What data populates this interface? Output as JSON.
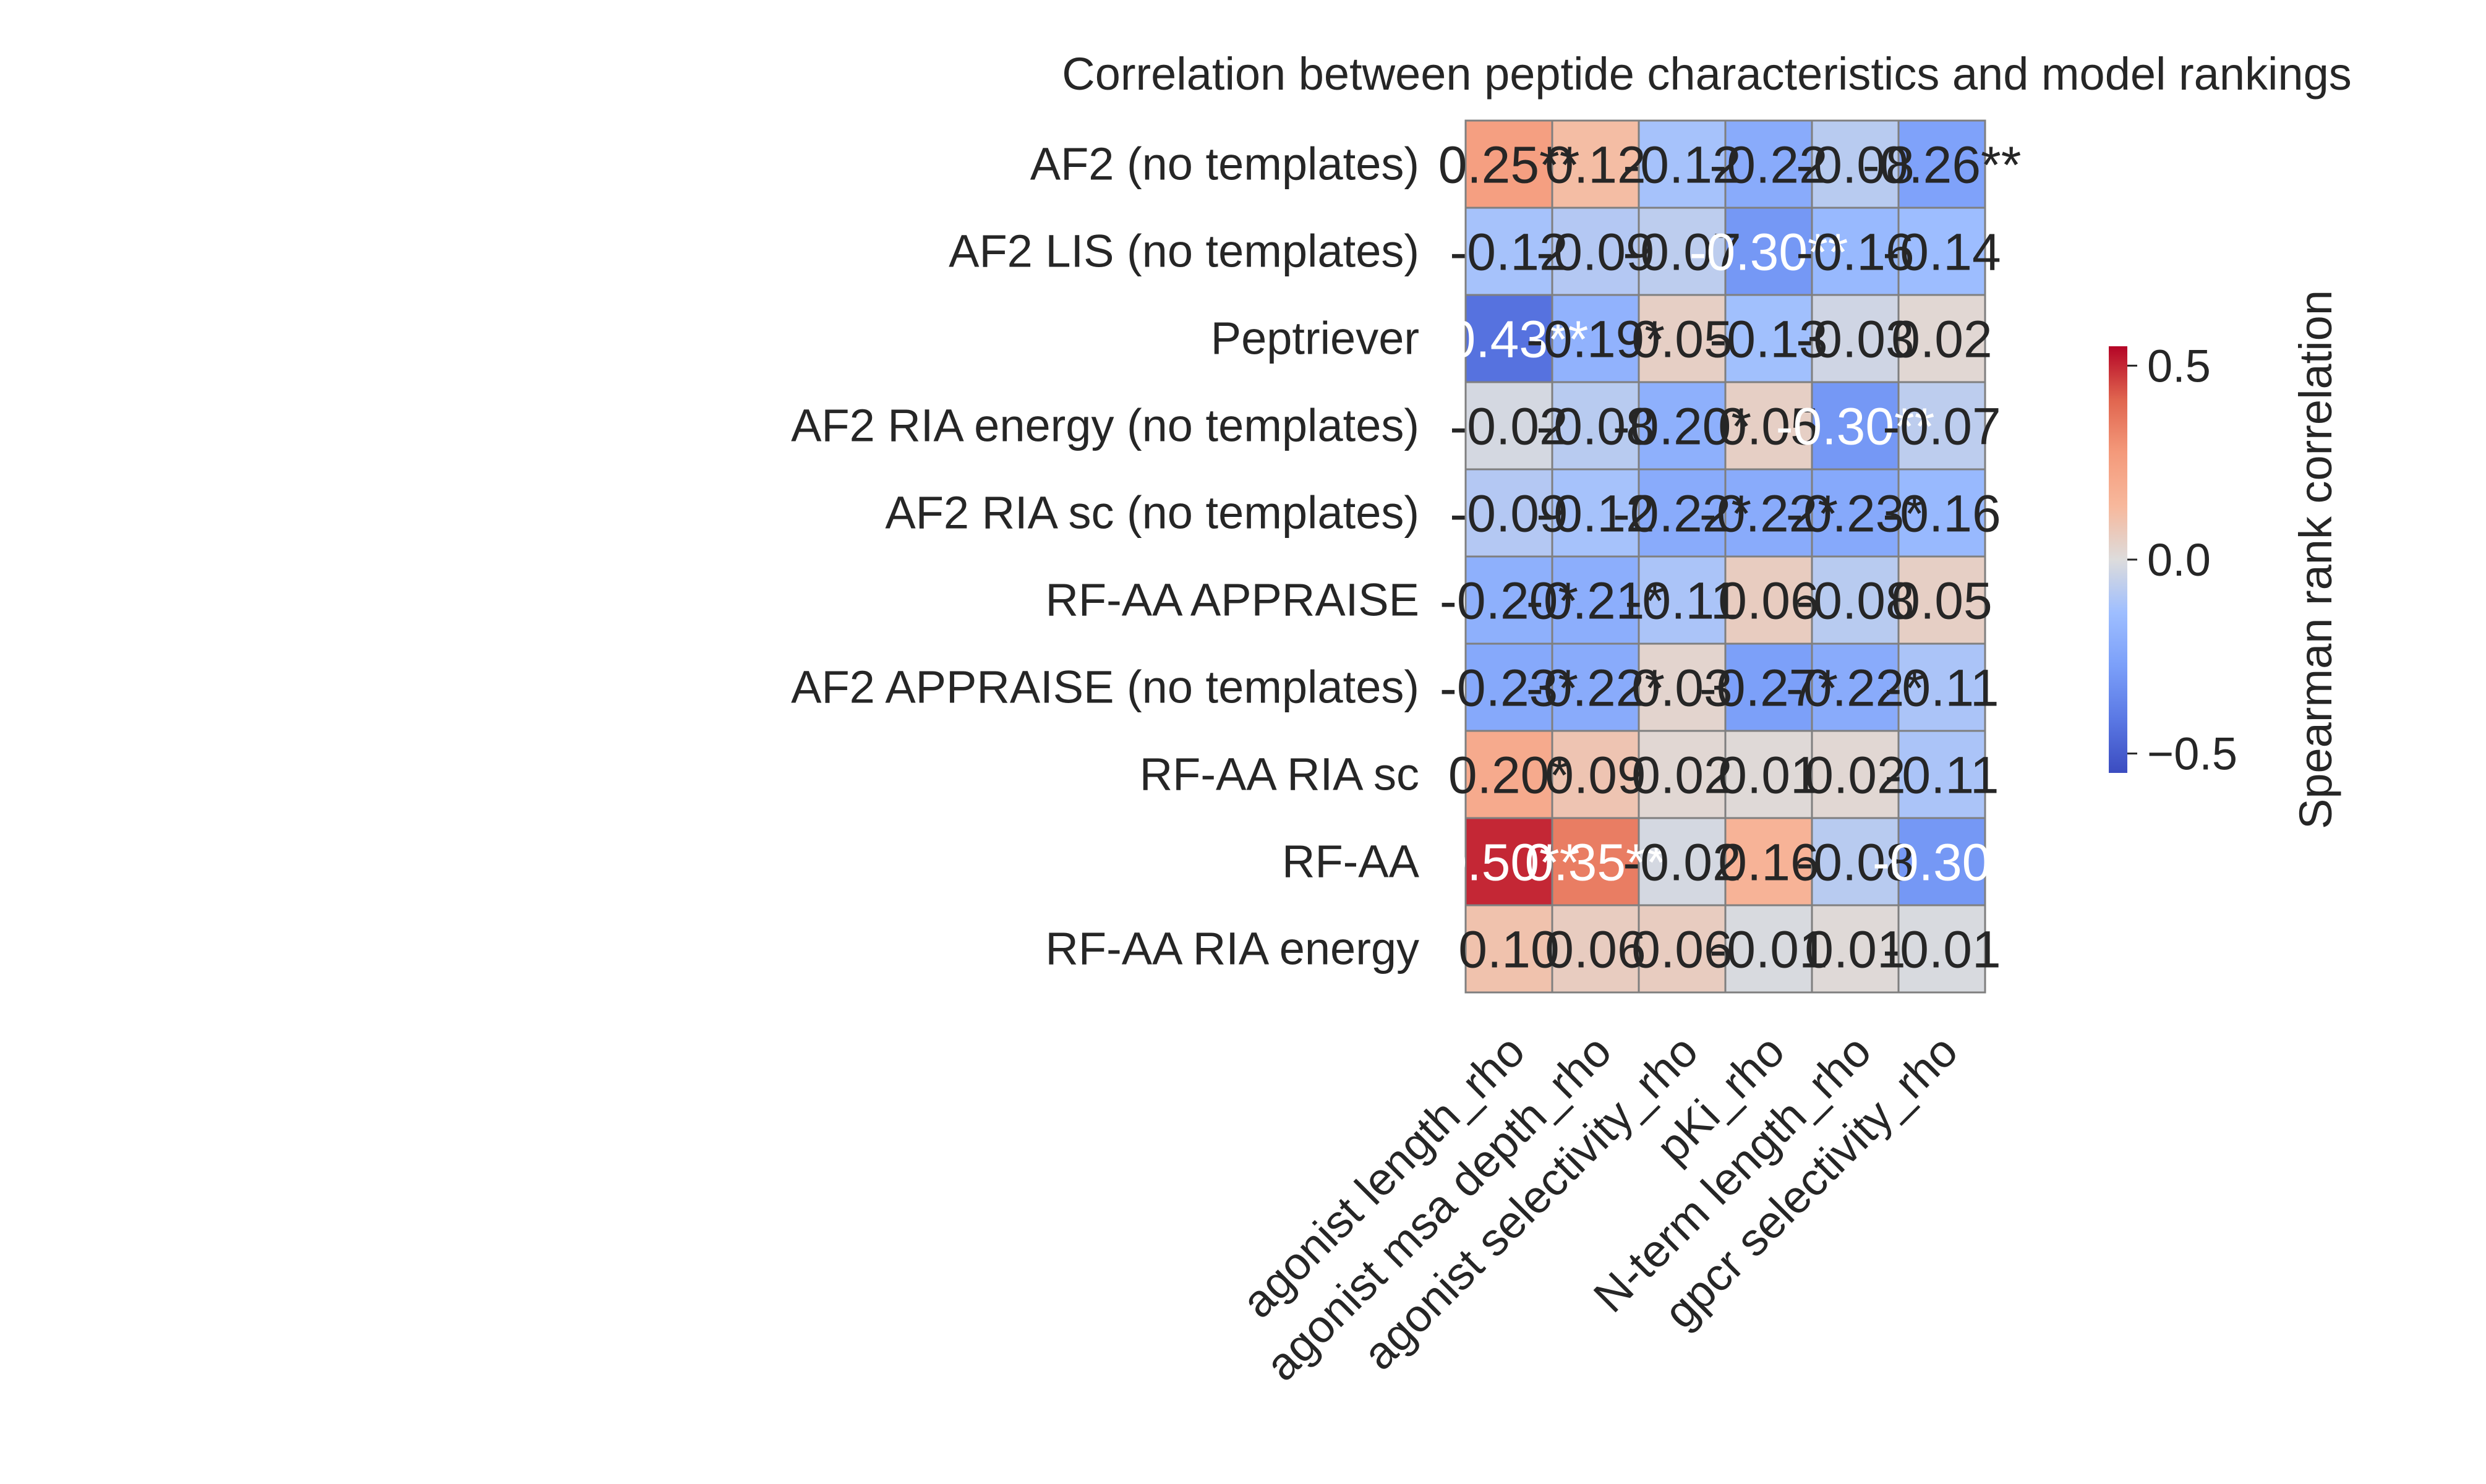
{
  "chart_data": {
    "type": "heatmap",
    "title": "Correlation between peptide characteristics and model rankings",
    "rows": [
      "AF2 (no templates)",
      "AF2 LIS (no templates)",
      "Peptriever",
      "AF2 RIA energy (no templates)",
      "AF2 RIA sc (no templates)",
      "RF-AA APPRAISE",
      "AF2 APPRAISE (no templates)",
      "RF-AA RIA sc",
      "RF-AA",
      "RF-AA RIA energy"
    ],
    "columns": [
      "agonist length_rho",
      "agonist msa depth_rho",
      "agonist selectivity_rho",
      "pKi_rho",
      "N-term length_rho",
      "gpcr selectivity_rho"
    ],
    "values": [
      [
        0.25,
        0.12,
        -0.12,
        -0.22,
        -0.08,
        -0.26
      ],
      [
        -0.12,
        -0.09,
        -0.07,
        -0.3,
        -0.16,
        -0.14
      ],
      [
        -0.43,
        -0.19,
        0.05,
        -0.13,
        -0.03,
        0.02
      ],
      [
        -0.02,
        -0.08,
        -0.2,
        0.05,
        -0.3,
        -0.07
      ],
      [
        -0.09,
        -0.12,
        -0.22,
        -0.22,
        -0.23,
        -0.16
      ],
      [
        -0.2,
        -0.21,
        -0.11,
        0.06,
        -0.08,
        0.05
      ],
      [
        -0.23,
        -0.22,
        0.03,
        -0.27,
        -0.22,
        -0.11
      ],
      [
        0.2,
        0.09,
        0.02,
        0.01,
        0.02,
        -0.11
      ],
      [
        0.5,
        0.35,
        -0.02,
        0.16,
        -0.08,
        -0.3
      ],
      [
        0.1,
        0.06,
        0.06,
        -0.01,
        0.01,
        -0.01
      ]
    ],
    "annotations": [
      [
        "0.25**",
        "0.12",
        "-0.12",
        "-0.22",
        "-0.08",
        "-0.26**"
      ],
      [
        "-0.12",
        "-0.09",
        "-0.07",
        "-0.30**",
        "-0.16",
        "-0.14"
      ],
      [
        "-0.43**",
        "-0.19*",
        "0.05",
        "-0.13",
        "-0.03",
        "0.02"
      ],
      [
        "-0.02",
        "-0.08",
        "-0.20*",
        "0.05",
        "-0.30**",
        "-0.07"
      ],
      [
        "-0.09",
        "-0.12",
        "-0.22*",
        "-0.22*",
        "-0.23*",
        "-0.16"
      ],
      [
        "-0.20*",
        "-0.21*",
        "-0.11",
        "0.06",
        "-0.08",
        "0.05"
      ],
      [
        "-0.23*",
        "-0.22*",
        "0.03",
        "-0.27*",
        "-0.22*",
        "-0.11"
      ],
      [
        "0.20*",
        "0.09",
        "0.02",
        "0.01",
        "0.02",
        "-0.11"
      ],
      [
        "0.50**",
        "0.35**",
        "-0.02",
        "0.16",
        "-0.08",
        "-0.30*"
      ],
      [
        "0.10",
        "0.06",
        "0.06",
        "-0.01",
        "0.01",
        "-0.01"
      ]
    ],
    "colormap": "coolwarm",
    "vmin": -0.55,
    "vmax": 0.55,
    "colorbar": {
      "label": "Spearman rank correlation",
      "ticks": [
        0.5,
        0.0,
        -0.5
      ],
      "tick_labels": [
        "0.5",
        "0.0",
        "−0.5"
      ]
    },
    "cell_border_color": "#7f7f7f"
  }
}
